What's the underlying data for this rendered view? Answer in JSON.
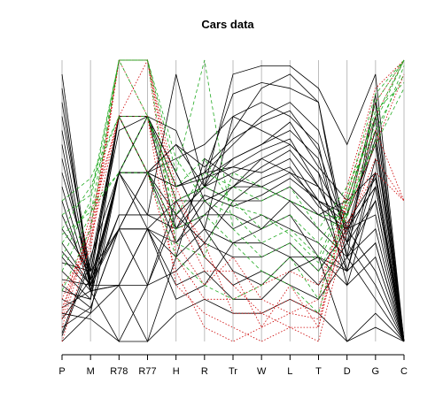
{
  "chart_data": {
    "type": "parallel-coordinates",
    "title": "Cars data",
    "axes": [
      "P",
      "M",
      "R78",
      "R77",
      "H",
      "R",
      "Tr",
      "W",
      "L",
      "T",
      "D",
      "G",
      "C"
    ],
    "y_range": [
      0,
      1
    ],
    "grid": true,
    "series": [
      {
        "color": "#000000",
        "dash": "solid",
        "values": [
          0.95,
          0.2,
          0.45,
          0.45,
          0.95,
          0.55,
          0.95,
          0.98,
          0.98,
          0.9,
          0.7,
          0.95,
          0.0
        ]
      },
      {
        "color": "#000000",
        "dash": "solid",
        "values": [
          0.9,
          0.18,
          0.6,
          0.8,
          0.55,
          0.6,
          0.88,
          0.92,
          0.9,
          0.85,
          0.3,
          0.88,
          0.0
        ]
      },
      {
        "color": "#000000",
        "dash": "solid",
        "values": [
          0.85,
          0.22,
          0.8,
          0.6,
          0.7,
          0.55,
          0.75,
          0.9,
          0.95,
          0.85,
          0.35,
          0.8,
          0.0
        ]
      },
      {
        "color": "#000000",
        "dash": "solid",
        "values": [
          0.8,
          0.25,
          0.75,
          0.8,
          0.6,
          0.4,
          0.8,
          0.85,
          0.8,
          0.7,
          0.25,
          0.6,
          0.0
        ]
      },
      {
        "color": "#000000",
        "dash": "solid",
        "values": [
          0.75,
          0.2,
          0.6,
          0.6,
          0.55,
          0.6,
          0.7,
          0.8,
          0.85,
          0.75,
          0.4,
          0.55,
          0.0
        ]
      },
      {
        "color": "#000000",
        "dash": "solid",
        "values": [
          0.7,
          0.18,
          0.45,
          0.45,
          0.45,
          0.55,
          0.65,
          0.7,
          0.75,
          0.65,
          0.3,
          0.5,
          0.0
        ]
      },
      {
        "color": "#000000",
        "dash": "solid",
        "values": [
          0.65,
          0.22,
          0.6,
          0.8,
          0.5,
          0.55,
          0.6,
          0.65,
          0.7,
          0.6,
          0.2,
          0.55,
          0.0
        ]
      },
      {
        "color": "#000000",
        "dash": "solid",
        "values": [
          0.6,
          0.25,
          0.8,
          0.6,
          0.55,
          0.58,
          0.62,
          0.6,
          0.65,
          0.5,
          0.25,
          0.65,
          0.0
        ]
      },
      {
        "color": "#000000",
        "dash": "solid",
        "values": [
          0.55,
          0.2,
          0.4,
          0.4,
          0.5,
          0.5,
          0.55,
          0.55,
          0.6,
          0.55,
          0.35,
          0.5,
          0.0
        ]
      },
      {
        "color": "#000000",
        "dash": "solid",
        "values": [
          0.5,
          0.18,
          0.2,
          0.2,
          0.45,
          0.55,
          0.5,
          0.5,
          0.55,
          0.45,
          0.4,
          0.45,
          0.0
        ]
      },
      {
        "color": "#000000",
        "dash": "solid",
        "values": [
          0.45,
          0.22,
          0.6,
          0.45,
          0.4,
          0.45,
          0.45,
          0.4,
          0.5,
          0.4,
          0.3,
          0.4,
          0.0
        ]
      },
      {
        "color": "#000000",
        "dash": "solid",
        "values": [
          0.4,
          0.25,
          0.4,
          0.6,
          0.35,
          0.5,
          0.4,
          0.45,
          0.4,
          0.35,
          0.25,
          0.35,
          0.0
        ]
      },
      {
        "color": "#000000",
        "dash": "solid",
        "values": [
          0.35,
          0.2,
          0.2,
          0.0,
          0.3,
          0.4,
          0.35,
          0.35,
          0.3,
          0.3,
          0.2,
          0.3,
          0.0
        ]
      },
      {
        "color": "#000000",
        "dash": "solid",
        "values": [
          0.3,
          0.18,
          0.0,
          0.2,
          0.25,
          0.35,
          0.3,
          0.3,
          0.35,
          0.25,
          0.4,
          0.25,
          0.0
        ]
      },
      {
        "color": "#000000",
        "dash": "solid",
        "values": [
          0.25,
          0.15,
          0.6,
          0.8,
          0.6,
          0.4,
          0.25,
          0.2,
          0.3,
          0.2,
          0.35,
          0.2,
          0.0
        ]
      },
      {
        "color": "#000000",
        "dash": "solid",
        "values": [
          0.2,
          0.12,
          0.4,
          0.2,
          0.5,
          0.3,
          0.2,
          0.25,
          0.2,
          0.15,
          0.3,
          0.15,
          0.0
        ]
      },
      {
        "color": "#000000",
        "dash": "solid",
        "values": [
          0.15,
          0.1,
          0.2,
          0.4,
          0.2,
          0.25,
          0.15,
          0.15,
          0.25,
          0.3,
          0.0,
          0.1,
          0.0
        ]
      },
      {
        "color": "#000000",
        "dash": "solid",
        "values": [
          0.1,
          0.08,
          0.0,
          0.0,
          0.1,
          0.15,
          0.1,
          0.1,
          0.15,
          0.1,
          0.0,
          0.05,
          0.0
        ]
      },
      {
        "color": "#000000",
        "dash": "solid",
        "values": [
          0.05,
          0.12,
          0.4,
          0.4,
          0.35,
          0.45,
          0.55,
          0.65,
          0.6,
          0.5,
          0.45,
          0.85,
          0.0
        ]
      },
      {
        "color": "#000000",
        "dash": "solid",
        "values": [
          0.0,
          0.1,
          0.6,
          0.6,
          0.65,
          0.7,
          0.8,
          0.75,
          0.7,
          0.6,
          0.4,
          0.75,
          0.0
        ]
      },
      {
        "color": "#000000",
        "dash": "solid",
        "values": [
          0.18,
          0.15,
          0.8,
          0.8,
          0.55,
          0.6,
          0.62,
          0.68,
          0.72,
          0.55,
          0.35,
          0.6,
          0.0
        ]
      },
      {
        "color": "#000000",
        "dash": "solid",
        "values": [
          0.22,
          0.2,
          0.6,
          0.4,
          0.3,
          0.65,
          0.58,
          0.55,
          0.5,
          0.45,
          0.5,
          0.6,
          0.0
        ]
      },
      {
        "color": "#000000",
        "dash": "solid",
        "values": [
          0.12,
          0.18,
          0.2,
          0.4,
          0.15,
          0.2,
          0.35,
          0.4,
          0.45,
          0.3,
          0.25,
          0.35,
          0.0
        ]
      },
      {
        "color": "#000000",
        "dash": "solid",
        "values": [
          0.08,
          0.22,
          0.4,
          0.6,
          0.45,
          0.35,
          0.5,
          0.58,
          0.62,
          0.48,
          0.4,
          0.55,
          0.0
        ]
      },
      {
        "color": "#000000",
        "dash": "solid",
        "values": [
          0.28,
          0.25,
          0.8,
          0.6,
          0.7,
          0.62,
          0.72,
          0.78,
          0.82,
          0.68,
          0.38,
          0.72,
          0.0
        ]
      },
      {
        "color": "#000000",
        "dash": "solid",
        "values": [
          0.32,
          0.2,
          0.6,
          0.6,
          0.4,
          0.52,
          0.48,
          0.52,
          0.58,
          0.5,
          0.42,
          0.58,
          0.0
        ]
      },
      {
        "color": "#000000",
        "dash": "solid",
        "values": [
          0.02,
          0.28,
          0.8,
          0.8,
          0.75,
          0.5,
          0.55,
          0.62,
          0.68,
          0.55,
          0.45,
          0.7,
          0.0
        ]
      },
      {
        "color": "#000000",
        "dash": "solid",
        "values": [
          0.03,
          0.3,
          0.6,
          0.8,
          0.4,
          0.58,
          0.65,
          0.7,
          0.78,
          0.62,
          0.5,
          0.8,
          0.0
        ]
      },
      {
        "color": "#cc0000",
        "dash": "dotted",
        "values": [
          0.05,
          0.4,
          1.0,
          1.0,
          0.55,
          0.3,
          0.2,
          0.1,
          0.15,
          0.1,
          0.5,
          0.8,
          1.0
        ]
      },
      {
        "color": "#cc0000",
        "dash": "dotted",
        "values": [
          0.0,
          0.35,
          1.0,
          1.0,
          0.45,
          0.25,
          0.25,
          0.05,
          0.2,
          0.05,
          0.45,
          0.7,
          0.95
        ]
      },
      {
        "color": "#cc0000",
        "dash": "dotted",
        "values": [
          0.1,
          0.45,
          0.8,
          0.8,
          0.35,
          0.2,
          0.3,
          0.15,
          0.1,
          0.15,
          0.55,
          0.9,
          1.0
        ]
      },
      {
        "color": "#cc0000",
        "dash": "dotted",
        "values": [
          0.15,
          0.38,
          1.0,
          0.8,
          0.2,
          0.1,
          0.05,
          0.0,
          0.05,
          0.0,
          0.4,
          0.65,
          0.5
        ]
      },
      {
        "color": "#cc0000",
        "dash": "dotted",
        "values": [
          0.08,
          0.42,
          0.8,
          1.0,
          0.3,
          0.15,
          0.15,
          0.2,
          0.25,
          0.2,
          0.48,
          0.75,
          0.5
        ]
      },
      {
        "color": "#cc0000",
        "dash": "dotted",
        "values": [
          0.2,
          0.32,
          1.0,
          1.0,
          0.5,
          0.35,
          0.1,
          0.1,
          0.05,
          0.05,
          0.52,
          0.85,
          1.0
        ]
      },
      {
        "color": "#cc0000",
        "dash": "dotted",
        "values": [
          0.12,
          0.36,
          0.8,
          0.6,
          0.25,
          0.05,
          0.0,
          0.05,
          0.1,
          0.08,
          0.42,
          0.6,
          0.5
        ]
      },
      {
        "color": "#22aa22",
        "dash": "dashed",
        "values": [
          0.3,
          0.5,
          1.0,
          1.0,
          0.6,
          1.0,
          0.4,
          0.3,
          0.35,
          0.25,
          0.45,
          0.85,
          1.0
        ]
      },
      {
        "color": "#22aa22",
        "dash": "dashed",
        "values": [
          0.25,
          0.45,
          1.0,
          0.8,
          0.5,
          0.55,
          0.5,
          0.4,
          0.45,
          0.35,
          0.5,
          0.8,
          1.0
        ]
      },
      {
        "color": "#22aa22",
        "dash": "dashed",
        "values": [
          0.4,
          0.55,
          0.8,
          0.8,
          0.45,
          0.6,
          0.55,
          0.5,
          0.55,
          0.4,
          0.55,
          0.75,
          0.95
        ]
      },
      {
        "color": "#22aa22",
        "dash": "dashed",
        "values": [
          0.35,
          0.48,
          0.6,
          0.6,
          0.3,
          0.2,
          0.15,
          0.2,
          0.3,
          0.15,
          0.48,
          0.7,
          0.9
        ]
      },
      {
        "color": "#22aa22",
        "dash": "dashed",
        "values": [
          0.45,
          0.52,
          1.0,
          1.0,
          0.65,
          0.5,
          0.45,
          0.35,
          0.4,
          0.3,
          0.52,
          0.88,
          1.0
        ]
      },
      {
        "color": "#22aa22",
        "dash": "dashed",
        "values": [
          0.5,
          0.58,
          0.8,
          0.6,
          0.4,
          0.45,
          0.35,
          0.25,
          0.2,
          0.1,
          0.46,
          0.72,
          0.98
        ]
      },
      {
        "color": "#22aa22",
        "dash": "dashed",
        "values": [
          0.18,
          0.4,
          1.0,
          1.0,
          0.35,
          0.3,
          0.6,
          0.55,
          0.5,
          0.45,
          0.44,
          0.78,
          1.0
        ]
      },
      {
        "color": "#22aa22",
        "dash": "dashed",
        "values": [
          0.38,
          0.46,
          0.6,
          0.8,
          0.55,
          0.65,
          0.48,
          0.45,
          0.38,
          0.28,
          0.5,
          0.82,
          0.92
        ]
      }
    ]
  }
}
